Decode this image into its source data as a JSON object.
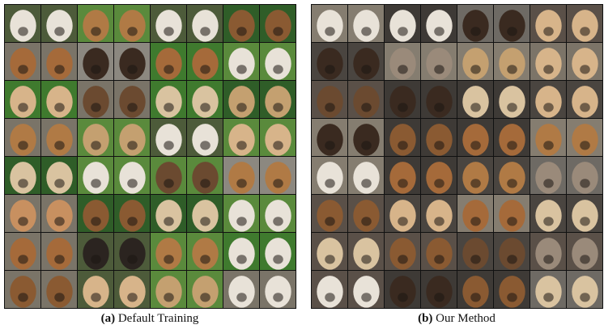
{
  "panels": [
    {
      "label": "(a)",
      "caption": "Default Training"
    },
    {
      "label": "(b)",
      "caption": "Our Method"
    }
  ]
}
